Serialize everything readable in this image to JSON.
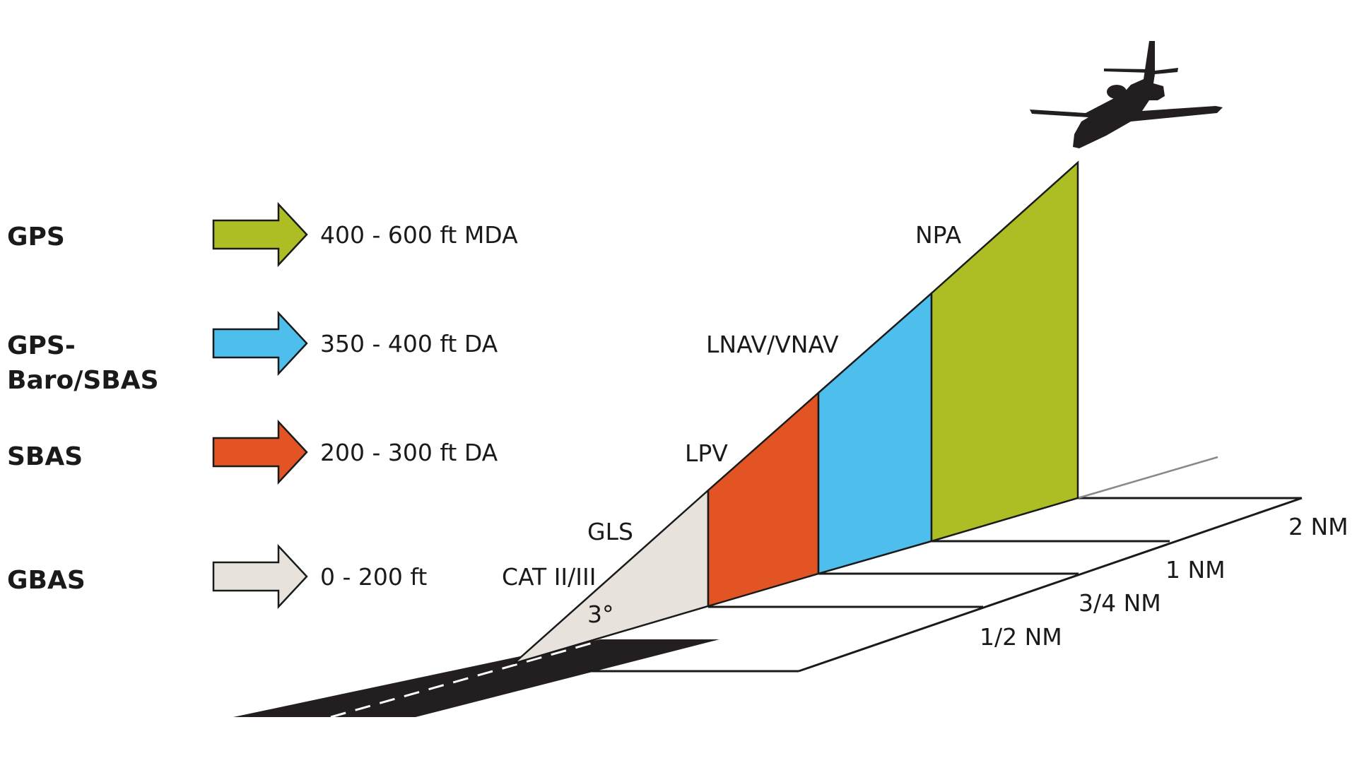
{
  "colors": {
    "gps": "#adbd24",
    "gps_baro_sbas": "#4ebeed",
    "sbas": "#e25423",
    "gbas": "#e8e2dc",
    "runway": "#231f20"
  },
  "systems": [
    {
      "name_lines": [
        "GPS"
      ],
      "minima": "400 - 600 ft MDA",
      "approach": "NPA"
    },
    {
      "name_lines": [
        "GPS-",
        "Baro/SBAS"
      ],
      "minima": "350 - 400 ft DA",
      "approach": "LNAV/VNAV"
    },
    {
      "name_lines": [
        "SBAS"
      ],
      "minima": "200 - 300 ft DA",
      "approach": "LPV"
    },
    {
      "name_lines": [
        "GBAS"
      ],
      "minima": "0 - 200 ft",
      "approach": "GLS"
    }
  ],
  "extra_labels": {
    "category": "CAT II/III",
    "angle": "3°"
  },
  "distances": [
    "2 NM",
    "1 NM",
    "3/4 NM",
    "1/2 NM"
  ],
  "icons": {
    "aircraft": "jet-aircraft-silhouette-icon",
    "arrow": "right-arrow-icon"
  }
}
